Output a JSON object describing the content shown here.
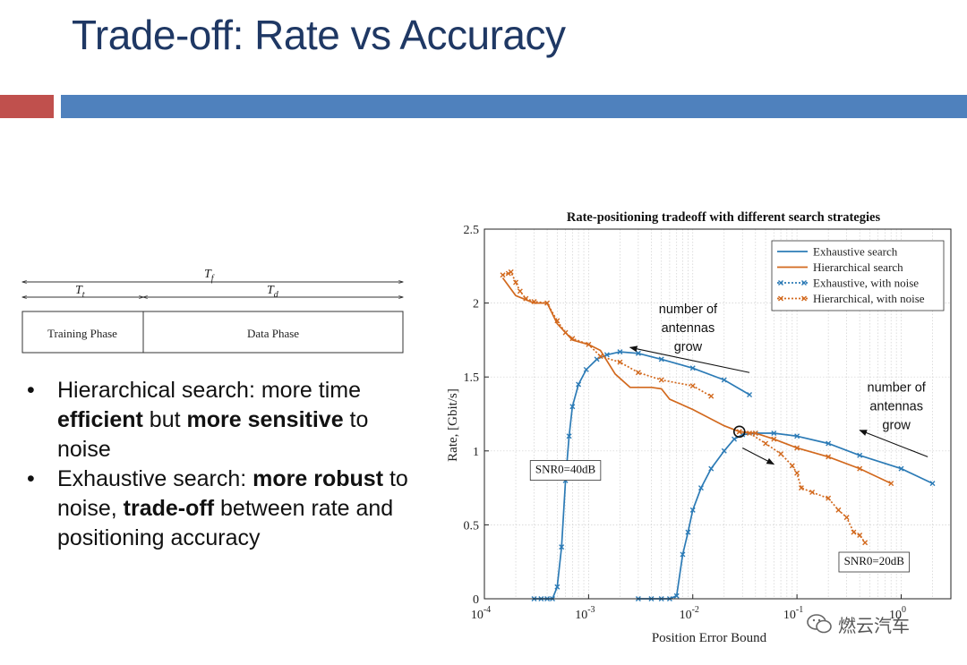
{
  "slide": {
    "title": "Trade-off: Rate vs Accuracy",
    "colors": {
      "title": "#1f3864",
      "bar_left": "#c0504d",
      "bar_right": "#4f81bd"
    }
  },
  "timeline": {
    "tf_label": "T",
    "tf_sub": "f",
    "tt_label": "T",
    "tt_sub": "t",
    "td_label": "T",
    "td_sub": "d",
    "training_label": "Training Phase",
    "data_label": "Data Phase"
  },
  "bullets": [
    {
      "parts": [
        {
          "text": "Hierarchical search: more time ",
          "bold": false
        },
        {
          "text": "efficient",
          "bold": true
        },
        {
          "text": " but ",
          "bold": false
        },
        {
          "text": "more sensitive",
          "bold": true
        },
        {
          "text": " to noise",
          "bold": false
        }
      ]
    },
    {
      "parts": [
        {
          "text": "Exhaustive search: ",
          "bold": false
        },
        {
          "text": "more robust",
          "bold": true
        },
        {
          "text": " to noise, ",
          "bold": false
        },
        {
          "text": "trade-off",
          "bold": true
        },
        {
          "text": " between rate and positioning accuracy",
          "bold": false
        }
      ]
    }
  ],
  "chart_data": {
    "type": "line",
    "title": "Rate-positioning tradeoff with different search strategies",
    "xlabel": "Position Error Bound",
    "ylabel": "Rate, [Gbit/s]",
    "x_scale": "log",
    "xlim": [
      0.0001,
      3
    ],
    "ylim": [
      0,
      2.5
    ],
    "yticks": [
      0,
      0.5,
      1,
      1.5,
      2,
      2.5
    ],
    "ytick_labels": [
      "0",
      "0.5",
      "1",
      "1.5",
      "2",
      "2.5"
    ],
    "xtick_exponents": [
      -4,
      -3,
      -2,
      -1,
      0
    ],
    "xtick_base": "10",
    "grid": true,
    "legend_position": "top-right",
    "legend": [
      {
        "name": "Exhaustive search",
        "color": "#2c7bb6",
        "style": "solid"
      },
      {
        "name": "Hierarchical search",
        "color": "#d2691e",
        "style": "solid"
      },
      {
        "name": "Exhaustive, with noise",
        "color": "#2c7bb6",
        "style": "dotted-x"
      },
      {
        "name": "Hierarchical, with noise",
        "color": "#d2691e",
        "style": "dotted-x"
      }
    ],
    "series": [
      {
        "id": "exh40",
        "legend": 0,
        "color": "#2c7bb6",
        "markers": true,
        "dotted": false,
        "points": [
          [
            0.0003,
            0
          ],
          [
            0.00035,
            0
          ],
          [
            0.0004,
            0
          ],
          [
            0.00045,
            0
          ],
          [
            0.0005,
            0.08
          ],
          [
            0.00055,
            0.35
          ],
          [
            0.0006,
            0.8
          ],
          [
            0.00065,
            1.1
          ],
          [
            0.0007,
            1.3
          ],
          [
            0.0008,
            1.45
          ],
          [
            0.00095,
            1.55
          ],
          [
            0.0012,
            1.62
          ],
          [
            0.0015,
            1.65
          ],
          [
            0.002,
            1.67
          ],
          [
            0.003,
            1.66
          ],
          [
            0.005,
            1.62
          ],
          [
            0.01,
            1.56
          ],
          [
            0.02,
            1.48
          ],
          [
            0.035,
            1.38
          ]
        ]
      },
      {
        "id": "hier40",
        "legend": 1,
        "color": "#d2691e",
        "markers": false,
        "dotted": false,
        "points": [
          [
            0.00015,
            2.17
          ],
          [
            0.0002,
            2.05
          ],
          [
            0.0003,
            2.0
          ],
          [
            0.0004,
            2.0
          ],
          [
            0.0005,
            1.86
          ],
          [
            0.0007,
            1.75
          ],
          [
            0.001,
            1.72
          ],
          [
            0.0013,
            1.68
          ],
          [
            0.0018,
            1.52
          ],
          [
            0.0025,
            1.43
          ],
          [
            0.004,
            1.43
          ],
          [
            0.005,
            1.42
          ],
          [
            0.006,
            1.35
          ],
          [
            0.01,
            1.28
          ],
          [
            0.02,
            1.17
          ],
          [
            0.028,
            1.13
          ]
        ]
      },
      {
        "id": "hier40n",
        "legend": 3,
        "color": "#d2691e",
        "markers": true,
        "dotted": true,
        "points": [
          [
            0.00015,
            2.19
          ],
          [
            0.00017,
            2.2
          ],
          [
            0.00018,
            2.21
          ],
          [
            0.0002,
            2.14
          ],
          [
            0.00022,
            2.08
          ],
          [
            0.00025,
            2.03
          ],
          [
            0.0003,
            2.01
          ],
          [
            0.0004,
            2.0
          ],
          [
            0.0005,
            1.88
          ],
          [
            0.0006,
            1.8
          ],
          [
            0.0007,
            1.76
          ],
          [
            0.001,
            1.72
          ],
          [
            0.0013,
            1.64
          ],
          [
            0.002,
            1.6
          ],
          [
            0.003,
            1.53
          ],
          [
            0.005,
            1.48
          ],
          [
            0.01,
            1.44
          ],
          [
            0.015,
            1.37
          ]
        ]
      },
      {
        "id": "exh20",
        "legend": 0,
        "color": "#2c7bb6",
        "markers": true,
        "dotted": false,
        "points": [
          [
            0.003,
            0
          ],
          [
            0.004,
            0
          ],
          [
            0.005,
            0
          ],
          [
            0.006,
            0
          ],
          [
            0.007,
            0.02
          ],
          [
            0.008,
            0.3
          ],
          [
            0.009,
            0.45
          ],
          [
            0.01,
            0.6
          ],
          [
            0.012,
            0.75
          ],
          [
            0.015,
            0.88
          ],
          [
            0.02,
            1.0
          ],
          [
            0.025,
            1.08
          ],
          [
            0.03,
            1.11
          ],
          [
            0.04,
            1.12
          ],
          [
            0.06,
            1.12
          ],
          [
            0.1,
            1.1
          ],
          [
            0.2,
            1.05
          ],
          [
            0.4,
            0.97
          ],
          [
            1,
            0.88
          ],
          [
            2,
            0.78
          ]
        ]
      },
      {
        "id": "hier20",
        "legend": 1,
        "color": "#d2691e",
        "markers": true,
        "dotted": false,
        "points": [
          [
            0.028,
            1.13
          ],
          [
            0.04,
            1.12
          ],
          [
            0.06,
            1.08
          ],
          [
            0.1,
            1.02
          ],
          [
            0.2,
            0.96
          ],
          [
            0.4,
            0.88
          ],
          [
            0.8,
            0.78
          ]
        ]
      },
      {
        "id": "hier20n",
        "legend": 3,
        "color": "#d2691e",
        "markers": true,
        "dotted": true,
        "points": [
          [
            0.028,
            1.13
          ],
          [
            0.035,
            1.12
          ],
          [
            0.05,
            1.05
          ],
          [
            0.07,
            0.98
          ],
          [
            0.09,
            0.9
          ],
          [
            0.1,
            0.85
          ],
          [
            0.11,
            0.75
          ],
          [
            0.14,
            0.72
          ],
          [
            0.2,
            0.68
          ],
          [
            0.25,
            0.6
          ],
          [
            0.3,
            0.55
          ],
          [
            0.35,
            0.45
          ],
          [
            0.4,
            0.43
          ],
          [
            0.45,
            0.38
          ]
        ]
      }
    ],
    "annotations": [
      {
        "text": [
          "number of",
          "antennas",
          "grow"
        ],
        "x": 0.009,
        "y": 1.93,
        "font": "sans"
      },
      {
        "text": [
          "number of",
          "antennas",
          "grow"
        ],
        "x": 0.9,
        "y": 1.4,
        "font": "sans"
      },
      {
        "text": [
          "SNR0=40dB"
        ],
        "x": 0.0006,
        "y": 0.85,
        "font": "serif",
        "boxed": true
      },
      {
        "text": [
          "SNR0=20dB"
        ],
        "x": 0.55,
        "y": 0.23,
        "font": "serif",
        "boxed": true
      }
    ],
    "arrows": [
      {
        "from": [
          0.035,
          1.53
        ],
        "to": [
          0.0025,
          1.7
        ]
      },
      {
        "from": [
          1.8,
          0.96
        ],
        "to": [
          0.4,
          1.14
        ]
      },
      {
        "from": [
          0.03,
          1.02
        ],
        "to": [
          0.06,
          0.91
        ]
      }
    ],
    "circle": {
      "x": 0.028,
      "y": 1.13
    }
  },
  "watermark": {
    "text": "燃云汽车",
    "icon": "wechat-icon"
  }
}
